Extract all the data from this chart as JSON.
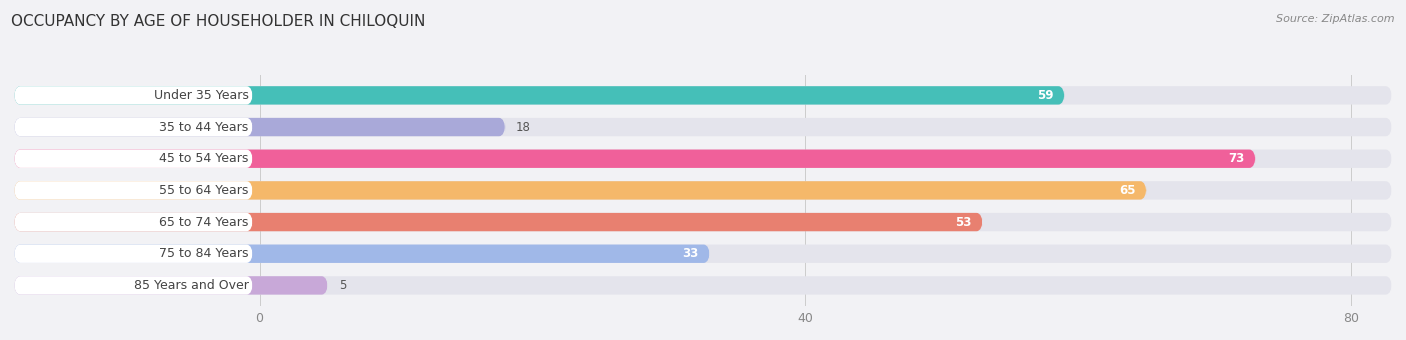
{
  "title": "OCCUPANCY BY AGE OF HOUSEHOLDER IN CHILOQUIN",
  "source": "Source: ZipAtlas.com",
  "categories": [
    "Under 35 Years",
    "35 to 44 Years",
    "45 to 54 Years",
    "55 to 64 Years",
    "65 to 74 Years",
    "75 to 84 Years",
    "85 Years and Over"
  ],
  "values": [
    59,
    18,
    73,
    65,
    53,
    33,
    5
  ],
  "colors": [
    "#45bfb8",
    "#a9a9d9",
    "#f0609a",
    "#f5b86a",
    "#e88070",
    "#a0b8e8",
    "#c8a8d8"
  ],
  "xlim_data": [
    0,
    80
  ],
  "xlim_display": [
    -18,
    83
  ],
  "xticks": [
    0,
    40,
    80
  ],
  "title_fontsize": 11,
  "label_fontsize": 9,
  "value_fontsize": 8.5,
  "bar_height": 0.58,
  "background_color": "#f2f2f5",
  "bar_bg_color": "#e4e4ec",
  "label_bg_color": "#ffffff",
  "bar_gap": 1.0
}
